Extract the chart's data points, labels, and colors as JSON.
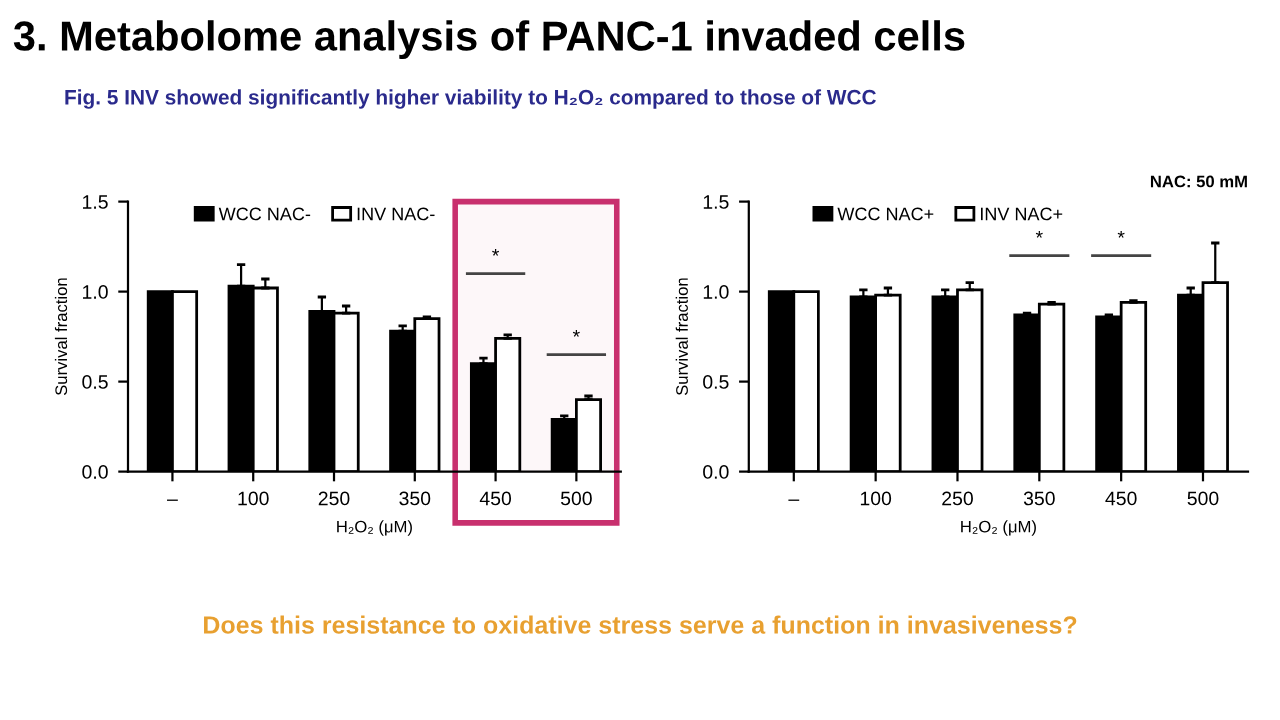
{
  "chart_data": [
    {
      "type": "bar",
      "title": "3. Metabolome analysis of PANC-1 invaded cells",
      "subtitle": "Fig. 5 INV showed significantly higher viability to H₂O₂ compared to those of WCC",
      "categories": [
        "–",
        "100",
        "250",
        "350",
        "450",
        "500"
      ],
      "xlabel": "H₂O₂ (μM)",
      "ylabel": "Survival fraction",
      "series": [
        {
          "name": "WCC NAC-",
          "color": "#000000",
          "values": [
            1.0,
            1.03,
            0.89,
            0.78,
            0.6,
            0.29
          ],
          "errors": [
            null,
            0.12,
            0.08,
            0.03,
            0.03,
            0.02
          ]
        },
        {
          "name": "INV NAC-",
          "color": "#ffffff",
          "values": [
            1.0,
            1.02,
            0.88,
            0.85,
            0.74,
            0.4
          ],
          "errors": [
            null,
            0.05,
            0.04,
            0.01,
            0.02,
            0.02
          ]
        }
      ],
      "ylim": [
        0,
        1.5
      ],
      "yticks": [
        {
          "value": 0,
          "label": "0.0"
        },
        {
          "value": 0.5,
          "label": "0.5"
        },
        {
          "value": 1,
          "label": "1.0"
        },
        1.5
      ],
      "bands": [
        {
          "axis": "x",
          "from": "450",
          "to": "500",
          "color": "#c8306e"
        }
      ],
      "annotations": [
        "*",
        "*",
        "Does this resistance to oxidative stress serve a function in invasiveness?"
      ],
      "legend": "top",
      "grid": false
    },
    {
      "type": "bar",
      "categories": [
        "–",
        "100",
        "250",
        "350",
        "450",
        "500"
      ],
      "xlabel": "H₂O₂ (μM)",
      "ylabel": "Survival fraction",
      "series": [
        {
          "name": "WCC NAC+",
          "color": "#000000",
          "values": [
            1.0,
            0.97,
            0.97,
            0.87,
            0.86,
            0.98
          ],
          "errors": [
            null,
            0.04,
            0.04,
            0.01,
            0.01,
            0.04
          ]
        },
        {
          "name": "INV NAC+",
          "color": "#ffffff",
          "values": [
            1.0,
            0.98,
            1.01,
            0.93,
            0.94,
            1.05
          ],
          "errors": [
            null,
            0.04,
            0.04,
            0.01,
            0.01,
            0.22
          ]
        }
      ],
      "ylim": [
        0,
        1.5
      ],
      "yticks": [
        {
          "value": 0,
          "label": "0.0"
        },
        {
          "value": 0.5,
          "label": "0.5"
        },
        {
          "value": 1,
          "label": "1.0"
        },
        1.5
      ],
      "annotations": [
        "*",
        "*",
        "NAC: 50 mM"
      ],
      "legend": "top",
      "grid": false
    }
  ]
}
